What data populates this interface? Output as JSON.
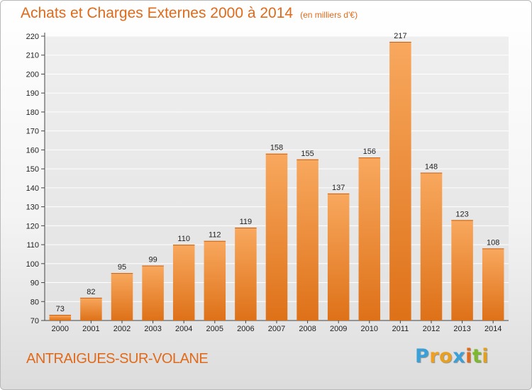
{
  "header": {
    "title": "Achats et Charges Externes 2000 à 2014",
    "subtitle": "(en milliers d'€)"
  },
  "footer": {
    "commune": "ANTRAIGUES-SUR-VOLANE",
    "logo": {
      "text": "Proxiti",
      "letters": [
        "P",
        "r",
        "o",
        "x",
        "i",
        "t",
        "i"
      ],
      "colors": [
        "#3aa0d8",
        "#f0a020",
        "#e8a020",
        "#3aa0d8",
        "#e06a1a",
        "#7cb92c",
        "#e0a020"
      ]
    }
  },
  "colors": {
    "bar_light": "#f7a45a",
    "bar_dark": "#e0741a",
    "accent": "#e06a1a"
  },
  "chart_data": {
    "type": "bar",
    "categories": [
      "2000",
      "2001",
      "2002",
      "2003",
      "2004",
      "2005",
      "2006",
      "2007",
      "2008",
      "2009",
      "2010",
      "2011",
      "2012",
      "2013",
      "2014"
    ],
    "values": [
      73,
      82,
      95,
      99,
      110,
      112,
      119,
      158,
      155,
      137,
      156,
      217,
      148,
      123,
      108
    ],
    "ylim": [
      70,
      220
    ],
    "yticks": [
      70,
      80,
      90,
      100,
      110,
      120,
      130,
      140,
      150,
      160,
      170,
      180,
      190,
      200,
      210,
      220
    ],
    "grid": true
  }
}
